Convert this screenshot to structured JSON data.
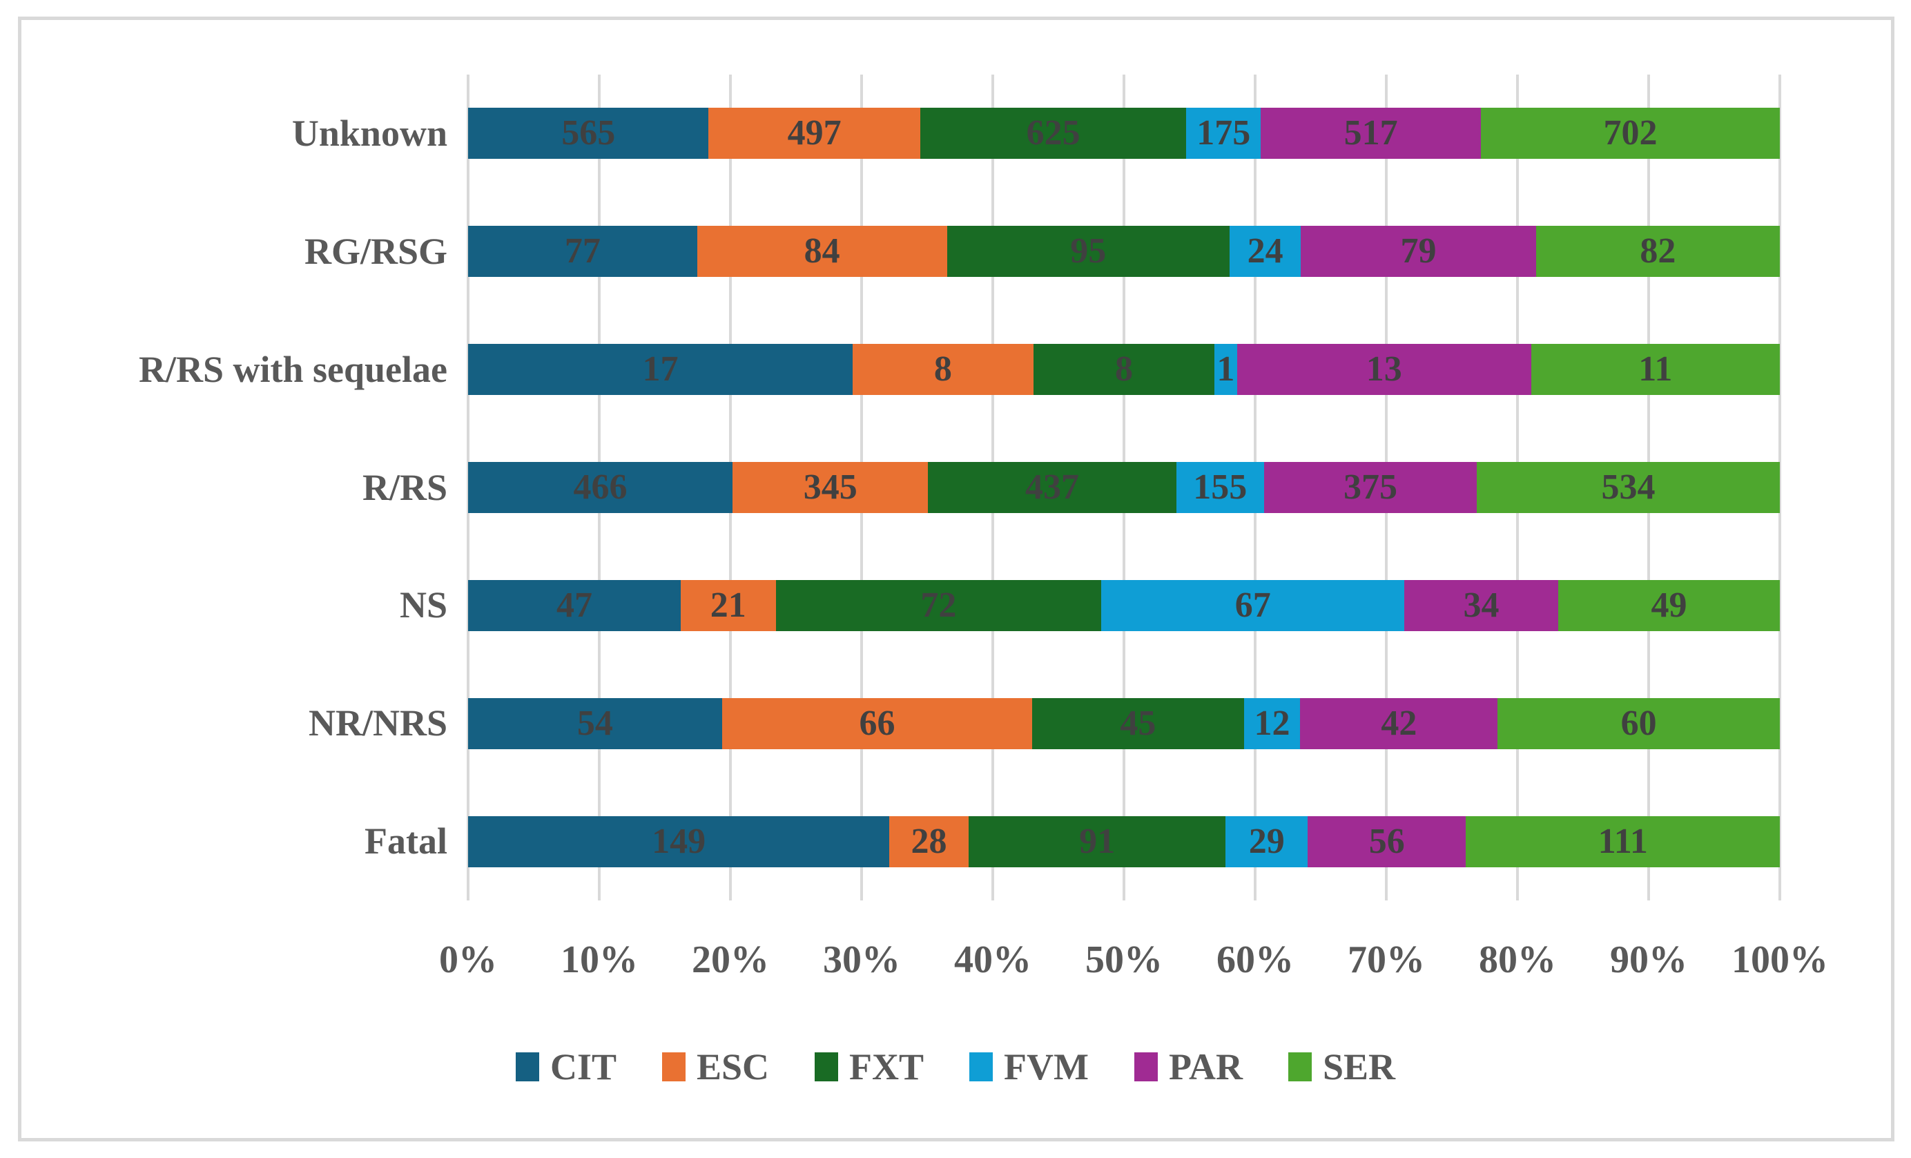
{
  "chart_data": {
    "type": "bar",
    "stacked": true,
    "orientation": "horizontal",
    "value_axis": "percent_of_category_total",
    "title": "",
    "xlabel": "",
    "ylabel": "",
    "xlim": [
      0,
      100
    ],
    "grid": "vertical",
    "legend_position": "bottom",
    "categories": [
      "Unknown",
      "RG/RSG",
      "R/RS with sequelae",
      "R/RS",
      "NS",
      "NR/NRS",
      "Fatal"
    ],
    "x_ticks": [
      "0%",
      "10%",
      "20%",
      "30%",
      "40%",
      "50%",
      "60%",
      "70%",
      "80%",
      "90%",
      "100%"
    ],
    "series": [
      {
        "name": "CIT",
        "color": "#156082",
        "values": [
          565,
          77,
          17,
          466,
          47,
          54,
          149
        ]
      },
      {
        "name": "ESC",
        "color": "#E97132",
        "values": [
          497,
          84,
          8,
          345,
          21,
          66,
          28
        ]
      },
      {
        "name": "FXT",
        "color": "#196B24",
        "values": [
          625,
          95,
          8,
          437,
          72,
          45,
          91
        ]
      },
      {
        "name": "FVM",
        "color": "#0F9ED5",
        "values": [
          175,
          24,
          1,
          155,
          67,
          12,
          29
        ]
      },
      {
        "name": "PAR",
        "color": "#A02B93",
        "values": [
          517,
          79,
          13,
          375,
          34,
          42,
          56
        ]
      },
      {
        "name": "SER",
        "color": "#4EA72E",
        "values": [
          702,
          82,
          11,
          534,
          49,
          60,
          111
        ]
      }
    ],
    "colors": {
      "grid": "#D9D9D9",
      "frame_border": "#D9D9D9",
      "category_text": "#595959",
      "axis_text": "#595959",
      "legend_text": "#595959",
      "data_label_text": "#404040"
    }
  }
}
